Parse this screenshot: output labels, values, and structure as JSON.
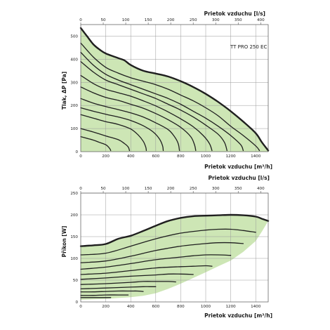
{
  "chart_data": [
    {
      "type": "line",
      "model_label": "TT PRO 250 EC",
      "ylabel": "Tlak, ΔP [Pa]",
      "xlabel_bottom": "Prietok vzduchu [m³/h]",
      "xlabel_top": "Prietok vzduchu [l/s]",
      "x_ticks": [
        "0",
        "200",
        "400",
        "600",
        "800",
        "1000",
        "1200",
        "1400"
      ],
      "x_top_ticks": [
        "0",
        "50",
        "100",
        "150",
        "200",
        "250",
        "300",
        "350",
        "400"
      ],
      "y_ticks": [
        "0",
        "100",
        "200",
        "300",
        "400",
        "500"
      ],
      "xlim": [
        0,
        1500
      ],
      "ylim": [
        0,
        550
      ],
      "x_top_lim": [
        0,
        416.7
      ],
      "grid": true,
      "area_fill": "#cde6b5",
      "line_color": "#1f1f1f",
      "envelope": [
        [
          0,
          535
        ],
        [
          50,
          500
        ],
        [
          100,
          465
        ],
        [
          150,
          442
        ],
        [
          200,
          425
        ],
        [
          300,
          405
        ],
        [
          350,
          395
        ],
        [
          400,
          375
        ],
        [
          500,
          350
        ],
        [
          600,
          338
        ],
        [
          700,
          325
        ],
        [
          800,
          305
        ],
        [
          900,
          280
        ],
        [
          1000,
          250
        ],
        [
          1100,
          215
        ],
        [
          1200,
          175
        ],
        [
          1300,
          130
        ],
        [
          1400,
          80
        ],
        [
          1450,
          40
        ],
        [
          1500,
          5
        ]
      ],
      "series": [
        {
          "values": [
            [
              0,
              470
            ],
            [
              100,
              410
            ],
            [
              200,
              365
            ],
            [
              300,
              340
            ],
            [
              400,
              320
            ],
            [
              500,
              305
            ],
            [
              600,
              290
            ],
            [
              700,
              270
            ],
            [
              800,
              245
            ],
            [
              900,
              220
            ],
            [
              1000,
              190
            ],
            [
              1100,
              155
            ],
            [
              1200,
              110
            ],
            [
              1300,
              70
            ],
            [
              1400,
              25
            ],
            [
              1430,
              5
            ]
          ]
        },
        {
          "values": [
            [
              0,
              430
            ],
            [
              100,
              375
            ],
            [
              200,
              335
            ],
            [
              300,
              310
            ],
            [
              400,
              290
            ],
            [
              500,
              270
            ],
            [
              600,
              250
            ],
            [
              700,
              230
            ],
            [
              800,
              205
            ],
            [
              900,
              175
            ],
            [
              1000,
              145
            ],
            [
              1100,
              110
            ],
            [
              1200,
              70
            ],
            [
              1280,
              30
            ],
            [
              1300,
              5
            ]
          ]
        },
        {
          "values": [
            [
              0,
              390
            ],
            [
              100,
              345
            ],
            [
              200,
              310
            ],
            [
              300,
              290
            ],
            [
              400,
              270
            ],
            [
              500,
              250
            ],
            [
              600,
              230
            ],
            [
              700,
              205
            ],
            [
              800,
              180
            ],
            [
              900,
              150
            ],
            [
              1000,
              115
            ],
            [
              1100,
              75
            ],
            [
              1150,
              40
            ],
            [
              1170,
              5
            ]
          ]
        },
        {
          "values": [
            [
              0,
              330
            ],
            [
              100,
              295
            ],
            [
              200,
              270
            ],
            [
              300,
              255
            ],
            [
              400,
              240
            ],
            [
              500,
              220
            ],
            [
              600,
              198
            ],
            [
              700,
              172
            ],
            [
              800,
              142
            ],
            [
              900,
              108
            ],
            [
              980,
              70
            ],
            [
              1030,
              35
            ],
            [
              1050,
              5
            ]
          ]
        },
        {
          "values": [
            [
              0,
              280
            ],
            [
              100,
              255
            ],
            [
              200,
              235
            ],
            [
              300,
              222
            ],
            [
              400,
              205
            ],
            [
              500,
              188
            ],
            [
              600,
              165
            ],
            [
              700,
              138
            ],
            [
              800,
              105
            ],
            [
              880,
              65
            ],
            [
              910,
              30
            ],
            [
              920,
              5
            ]
          ]
        },
        {
          "values": [
            [
              0,
              230
            ],
            [
              100,
              210
            ],
            [
              200,
              195
            ],
            [
              300,
              182
            ],
            [
              400,
              168
            ],
            [
              500,
              150
            ],
            [
              600,
              125
            ],
            [
              700,
              95
            ],
            [
              750,
              65
            ],
            [
              780,
              35
            ],
            [
              790,
              5
            ]
          ]
        },
        {
          "values": [
            [
              0,
              190
            ],
            [
              100,
              175
            ],
            [
              200,
              162
            ],
            [
              300,
              150
            ],
            [
              400,
              135
            ],
            [
              500,
              112
            ],
            [
              580,
              85
            ],
            [
              630,
              55
            ],
            [
              655,
              25
            ],
            [
              660,
              5
            ]
          ]
        },
        {
          "values": [
            [
              0,
              160
            ],
            [
              100,
              145
            ],
            [
              200,
              130
            ],
            [
              300,
              118
            ],
            [
              400,
              98
            ],
            [
              460,
              72
            ],
            [
              500,
              45
            ],
            [
              520,
              20
            ],
            [
              525,
              5
            ]
          ]
        },
        {
          "values": [
            [
              0,
              100
            ],
            [
              100,
              85
            ],
            [
              200,
              68
            ],
            [
              300,
              52
            ],
            [
              350,
              35
            ],
            [
              380,
              20
            ],
            [
              390,
              5
            ]
          ]
        },
        {
          "values": [
            [
              0,
              65
            ],
            [
              100,
              50
            ],
            [
              150,
              40
            ],
            [
              200,
              30
            ],
            [
              230,
              15
            ],
            [
              240,
              5
            ]
          ]
        }
      ]
    },
    {
      "type": "line",
      "ylabel": "Příkon [W]",
      "xlabel_bottom": "Prietok vzduchu [m³/h]",
      "xlabel_top": "Prietok vzduchu [l/s]",
      "x_ticks": [
        "0",
        "200",
        "400",
        "600",
        "800",
        "1000",
        "1200",
        "1400"
      ],
      "x_top_ticks": [
        "0",
        "50",
        "100",
        "150",
        "200",
        "250",
        "300",
        "350",
        "400"
      ],
      "y_ticks": [
        "0",
        "50",
        "100",
        "150",
        "200",
        "250"
      ],
      "xlim": [
        0,
        1500
      ],
      "ylim": [
        0,
        250
      ],
      "x_top_lim": [
        0,
        416.7
      ],
      "grid": true,
      "area_fill": "#cde6b5",
      "line_color": "#1f1f1f",
      "envelope": [
        [
          0,
          128
        ],
        [
          100,
          130
        ],
        [
          200,
          133
        ],
        [
          300,
          145
        ],
        [
          400,
          152
        ],
        [
          500,
          163
        ],
        [
          600,
          175
        ],
        [
          700,
          186
        ],
        [
          800,
          193
        ],
        [
          900,
          197
        ],
        [
          1000,
          198
        ],
        [
          1100,
          199
        ],
        [
          1200,
          200
        ],
        [
          1300,
          199
        ],
        [
          1400,
          196
        ],
        [
          1450,
          191
        ],
        [
          1500,
          186
        ]
      ],
      "lower_boundary": [
        [
          0,
          5
        ],
        [
          100,
          6
        ],
        [
          200,
          7
        ],
        [
          300,
          9
        ],
        [
          400,
          11
        ],
        [
          500,
          14
        ],
        [
          600,
          20
        ],
        [
          700,
          30
        ],
        [
          800,
          42
        ],
        [
          900,
          55
        ],
        [
          1000,
          68
        ],
        [
          1100,
          82
        ],
        [
          1200,
          95
        ],
        [
          1300,
          115
        ],
        [
          1400,
          140
        ],
        [
          1450,
          162
        ],
        [
          1500,
          186
        ]
      ],
      "series": [
        {
          "values": [
            [
              0,
              108
            ],
            [
              200,
              112
            ],
            [
              400,
              128
            ],
            [
              600,
              145
            ],
            [
              800,
              158
            ],
            [
              1000,
              165
            ],
            [
              1100,
              167
            ],
            [
              1200,
              167
            ],
            [
              1300,
              164
            ],
            [
              1400,
              160
            ]
          ]
        },
        {
          "values": [
            [
              0,
              90
            ],
            [
              200,
              94
            ],
            [
              400,
              105
            ],
            [
              600,
              118
            ],
            [
              800,
              128
            ],
            [
              1000,
              134
            ],
            [
              1100,
              136
            ],
            [
              1200,
              136
            ],
            [
              1300,
              134
            ]
          ]
        },
        {
          "values": [
            [
              0,
              75
            ],
            [
              200,
              80
            ],
            [
              400,
              88
            ],
            [
              600,
              97
            ],
            [
              800,
              103
            ],
            [
              900,
              106
            ],
            [
              1000,
              108
            ],
            [
              1100,
              108
            ],
            [
              1200,
              107
            ]
          ]
        },
        {
          "values": [
            [
              0,
              63
            ],
            [
              200,
              66
            ],
            [
              400,
              72
            ],
            [
              600,
              78
            ],
            [
              800,
              81
            ],
            [
              900,
              82
            ],
            [
              1000,
              83
            ],
            [
              1050,
              82
            ]
          ]
        },
        {
          "values": [
            [
              0,
              52
            ],
            [
              200,
              55
            ],
            [
              400,
              59
            ],
            [
              600,
              62
            ],
            [
              700,
              64
            ],
            [
              800,
              64
            ],
            [
              900,
              63
            ]
          ]
        },
        {
          "values": [
            [
              0,
              40
            ],
            [
              200,
              42
            ],
            [
              400,
              45
            ],
            [
              500,
              47
            ],
            [
              600,
              47
            ],
            [
              700,
              47
            ],
            [
              760,
              46
            ]
          ]
        },
        {
          "values": [
            [
              0,
              30
            ],
            [
              200,
              32
            ],
            [
              400,
              34
            ],
            [
              500,
              35
            ],
            [
              550,
              35
            ],
            [
              600,
              35
            ]
          ]
        },
        {
          "values": [
            [
              0,
              23
            ],
            [
              100,
              23
            ],
            [
              200,
              24
            ],
            [
              300,
              25
            ],
            [
              400,
              25
            ],
            [
              450,
              25
            ],
            [
              500,
              24
            ]
          ]
        },
        {
          "values": [
            [
              0,
              15
            ],
            [
              100,
              15
            ],
            [
              200,
              16
            ],
            [
              300,
              16
            ],
            [
              380,
              16
            ]
          ]
        },
        {
          "values": [
            [
              0,
              10
            ],
            [
              100,
              10
            ],
            [
              200,
              10
            ],
            [
              240,
              10
            ]
          ]
        }
      ]
    }
  ]
}
